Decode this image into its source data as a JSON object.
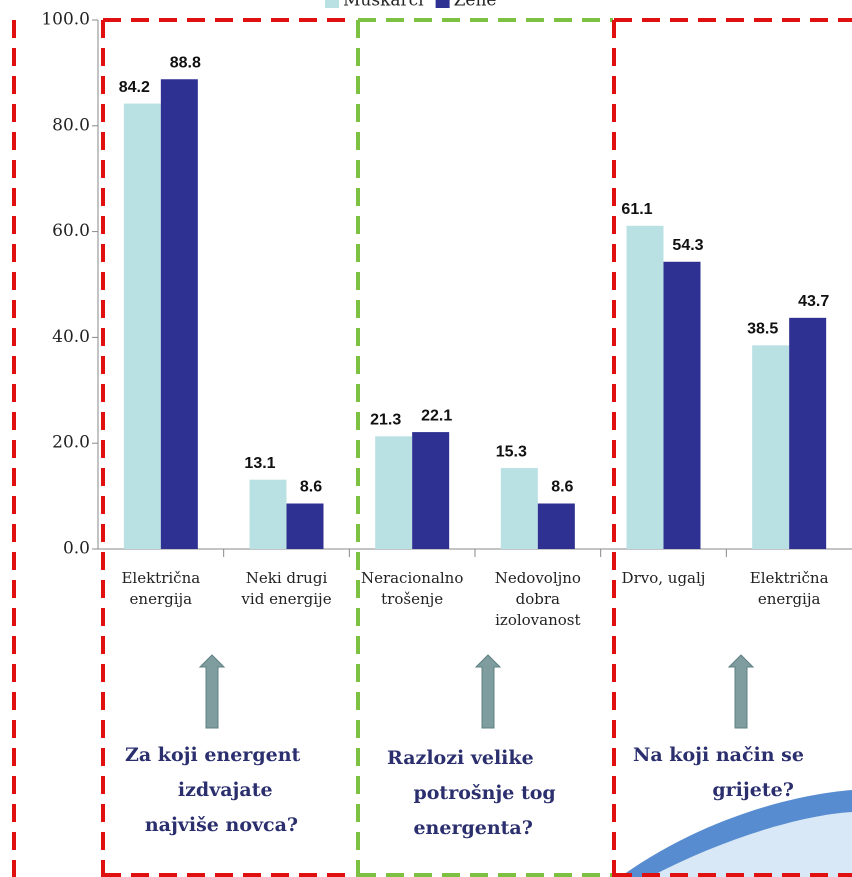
{
  "chart_data": {
    "type": "bar",
    "categories": [
      "Električna\nenergija",
      "Neki drugi\nvid energije",
      "Neracionalno\ntrošenje",
      "Nedovoljno\ndobra\nizolovanost",
      "Drvo, ugalj",
      "Električna\nenergija"
    ],
    "series": [
      {
        "name": "Muškarci",
        "color": "#b9e1e3",
        "values": [
          84.2,
          13.1,
          21.3,
          15.3,
          61.1,
          38.5
        ]
      },
      {
        "name": "Žene",
        "color": "#2e3192",
        "values": [
          88.8,
          8.6,
          22.1,
          8.6,
          54.3,
          43.7
        ]
      }
    ],
    "ylim": [
      0,
      100
    ],
    "yticks": [
      {
        "value": 0,
        "label": "0.0"
      },
      {
        "value": 20,
        "label": "20.0"
      },
      {
        "value": 40,
        "label": "40.0"
      },
      {
        "value": 60,
        "label": "60.0"
      },
      {
        "value": 80,
        "label": "80.0"
      },
      {
        "value": 100,
        "label": "100.0"
      }
    ],
    "legend": "top",
    "annotations": [
      "Za koji energent\n        izdvajate\n   najviše novca?",
      "Razlozi velike\n    potrošnje tog\n    energenta?",
      "Na koji način se\n            grijete?"
    ]
  }
}
